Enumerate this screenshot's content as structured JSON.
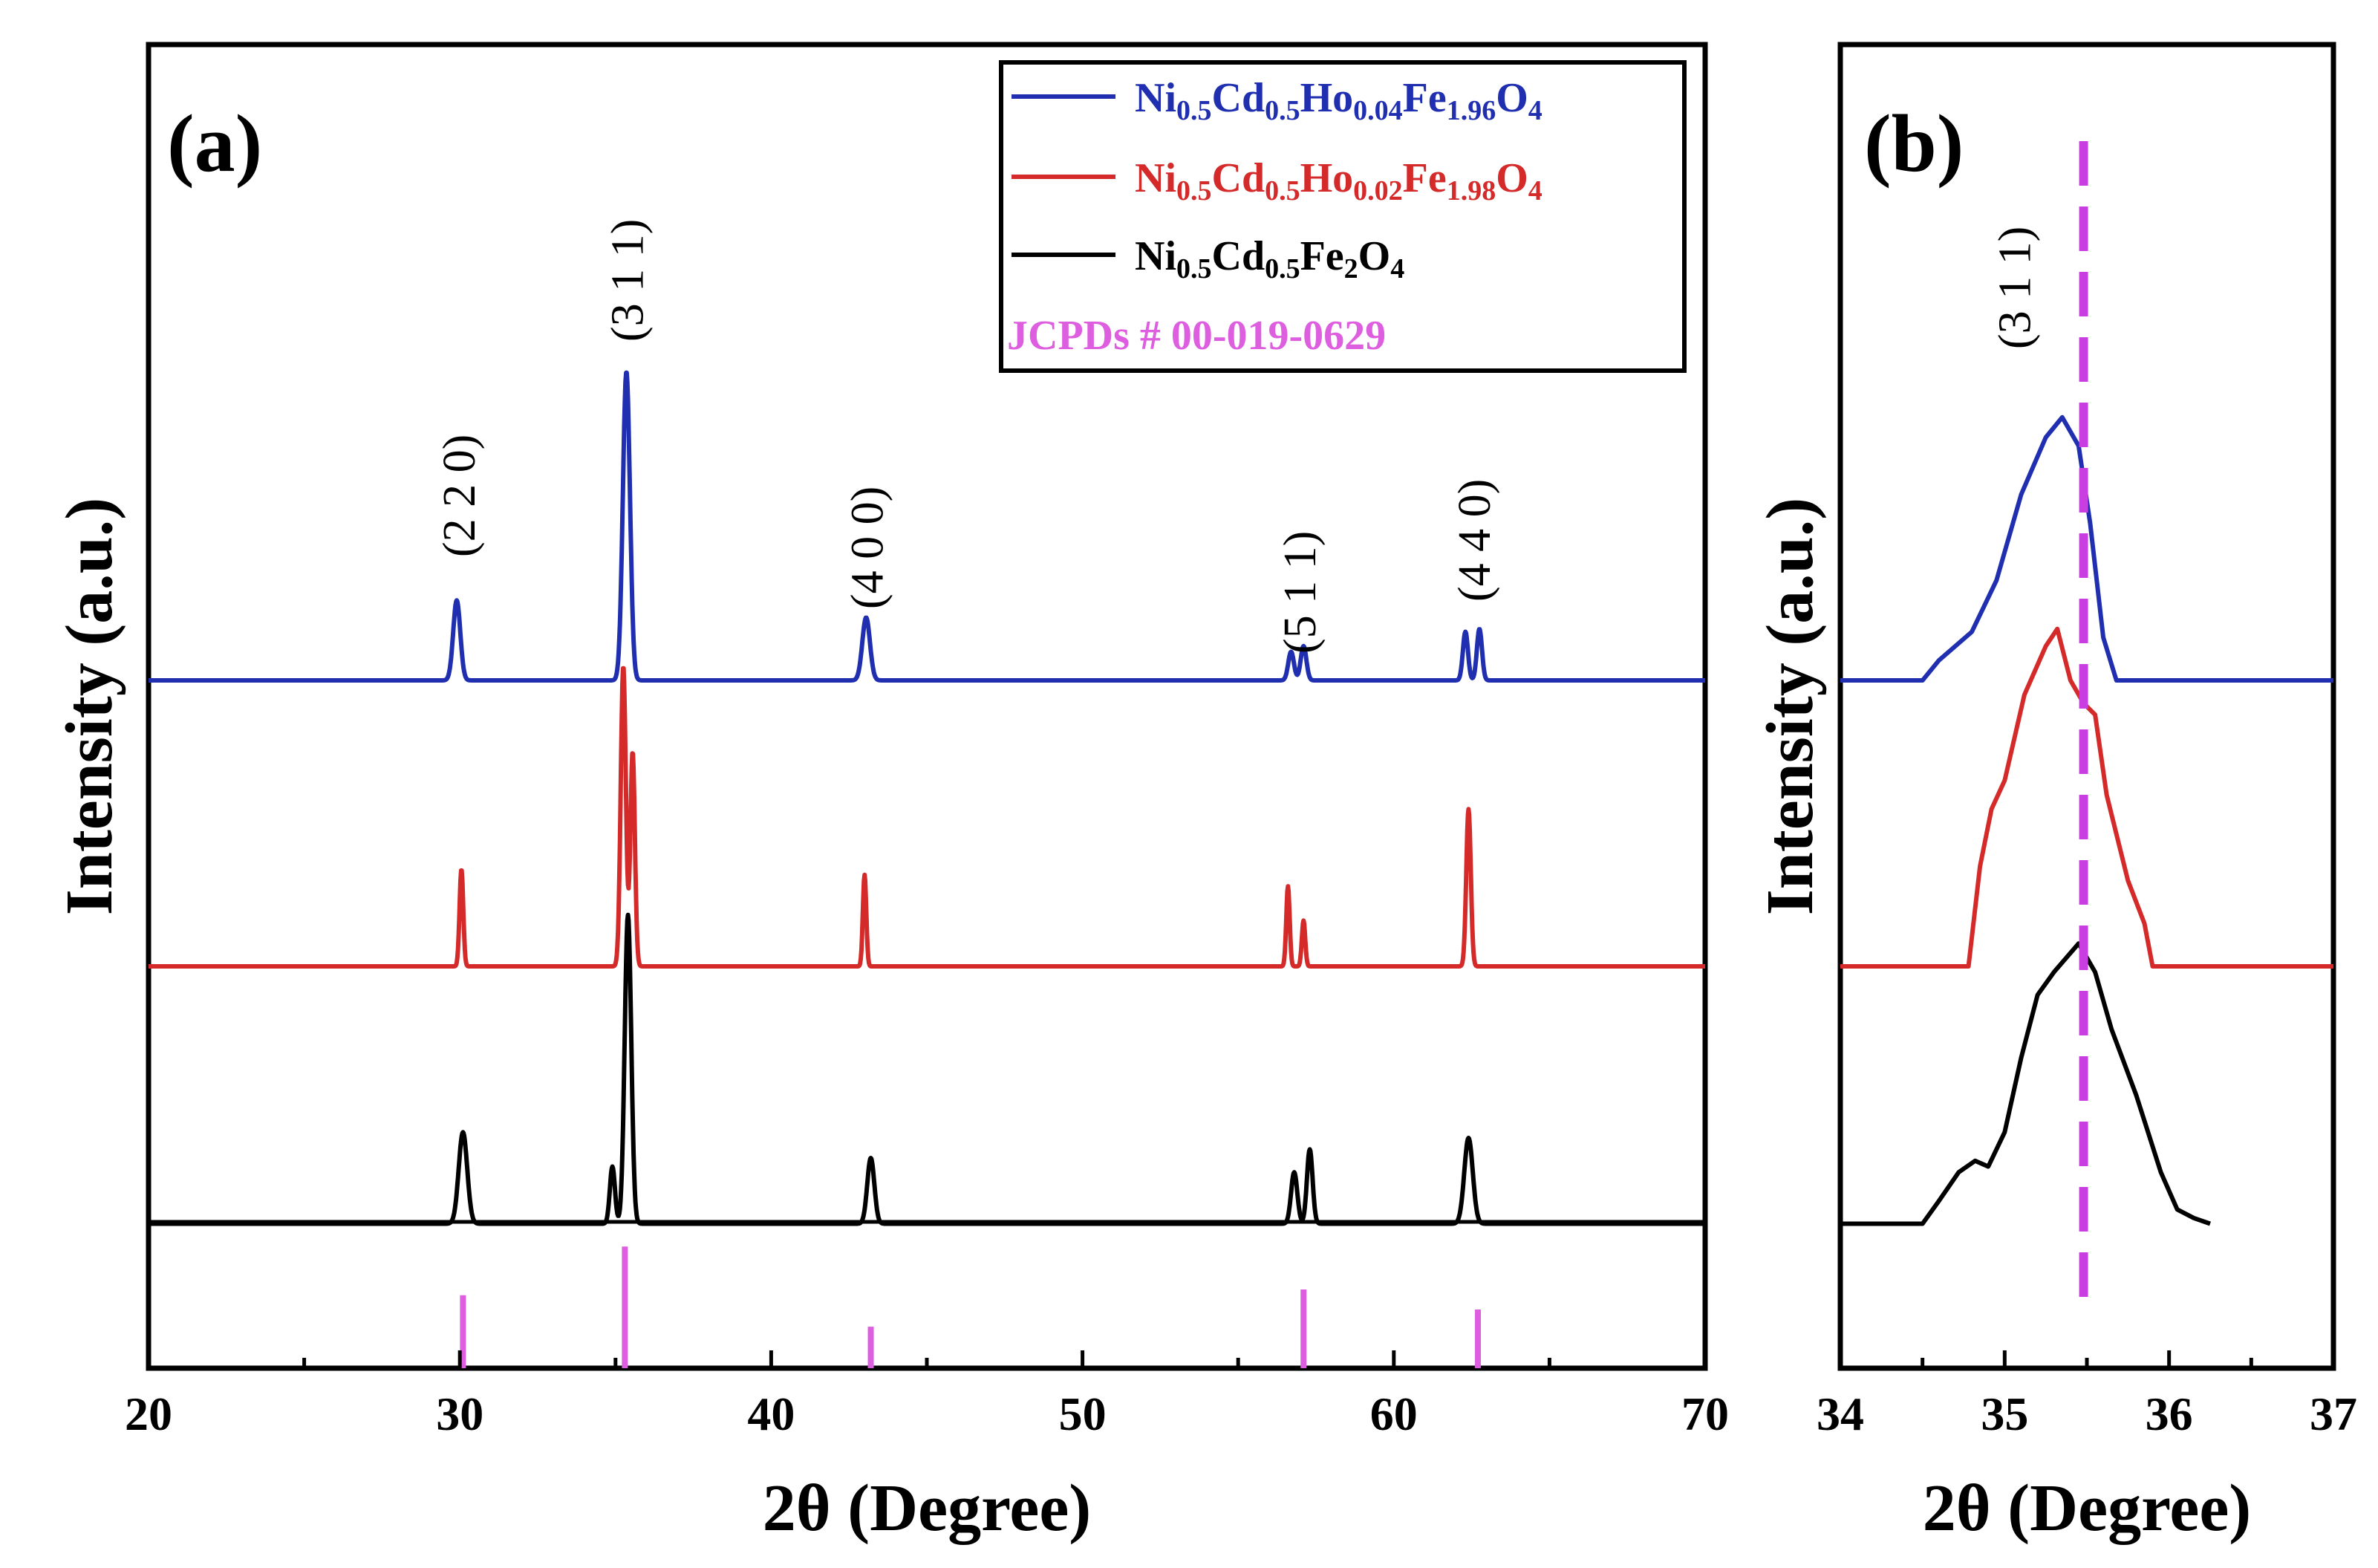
{
  "chart_data": [
    {
      "panel": "(a)",
      "type": "line",
      "xlabel": "2θ (Degree)",
      "ylabel": "Intensity (a.u.)",
      "xlim": [
        20,
        70
      ],
      "xticks": [
        20,
        30,
        40,
        50,
        60,
        70
      ],
      "colors": {
        "blue": "#1f2fb0",
        "red": "#d42a2a",
        "black": "#000000",
        "ref": "#dd5fe0"
      },
      "legend": [
        {
          "key": "blue",
          "parts": [
            [
              "Ni",
              ""
            ],
            [
              "0.5",
              "sub"
            ],
            [
              "Cd",
              ""
            ],
            [
              "0.5",
              "sub"
            ],
            [
              "Ho",
              ""
            ],
            [
              "0.04",
              "sub"
            ],
            [
              "Fe",
              ""
            ],
            [
              "1.96",
              "sub"
            ],
            [
              "O",
              ""
            ],
            [
              "4",
              "sub"
            ]
          ]
        },
        {
          "key": "red",
          "parts": [
            [
              "Ni",
              ""
            ],
            [
              "0.5",
              "sub"
            ],
            [
              "Cd",
              ""
            ],
            [
              "0.5",
              "sub"
            ],
            [
              "Ho",
              ""
            ],
            [
              "0.02",
              "sub"
            ],
            [
              "Fe",
              ""
            ],
            [
              "1.98",
              "sub"
            ],
            [
              "O",
              ""
            ],
            [
              "4",
              "sub"
            ]
          ]
        },
        {
          "key": "black",
          "parts": [
            [
              "Ni",
              ""
            ],
            [
              "0.5",
              "sub"
            ],
            [
              "Cd",
              ""
            ],
            [
              "0.5",
              "sub"
            ],
            [
              "Fe",
              ""
            ],
            [
              "2",
              "sub"
            ],
            [
              "O",
              ""
            ],
            [
              "4",
              "sub"
            ]
          ]
        }
      ],
      "reference_label": "JCPDs # 00-019-0629",
      "series": [
        {
          "key": "blue",
          "baseline": 2.4,
          "peaks": [
            [
              29.9,
              0.28,
              0.25
            ],
            [
              35.35,
              1.08,
              0.25
            ],
            [
              43.05,
              0.22,
              0.27
            ],
            [
              56.7,
              0.1,
              0.2
            ],
            [
              57.1,
              0.12,
              0.2
            ],
            [
              62.3,
              0.17,
              0.18
            ],
            [
              62.75,
              0.18,
              0.18
            ]
          ]
        },
        {
          "key": "red",
          "baseline": 1.4,
          "peaks": [
            [
              30.05,
              0.34,
              0.13
            ],
            [
              35.25,
              1.05,
              0.18
            ],
            [
              35.55,
              0.75,
              0.16
            ],
            [
              43.0,
              0.32,
              0.12
            ],
            [
              56.6,
              0.28,
              0.12
            ],
            [
              57.1,
              0.16,
              0.12
            ],
            [
              62.4,
              0.55,
              0.16
            ]
          ]
        },
        {
          "key": "black",
          "baseline": 0.5,
          "peaks": [
            [
              30.1,
              0.32,
              0.3
            ],
            [
              34.9,
              0.2,
              0.18
            ],
            [
              35.4,
              1.08,
              0.23
            ],
            [
              43.2,
              0.23,
              0.25
            ],
            [
              56.8,
              0.18,
              0.22
            ],
            [
              57.3,
              0.26,
              0.2
            ],
            [
              62.4,
              0.3,
              0.3
            ]
          ]
        }
      ],
      "reference_lines": [
        {
          "x": 30.1,
          "h": 0.25
        },
        {
          "x": 35.3,
          "h": 0.42
        },
        {
          "x": 43.2,
          "h": 0.14
        },
        {
          "x": 57.1,
          "h": 0.27
        },
        {
          "x": 62.7,
          "h": 0.2
        }
      ],
      "hkl_labels": [
        {
          "x": 30.0,
          "text": "(2 2 0)"
        },
        {
          "x": 35.4,
          "text": "(3 1 1)"
        },
        {
          "x": 43.1,
          "text": "(4 0 0)"
        },
        {
          "x": 57.0,
          "text": "(5 1 1)"
        },
        {
          "x": 62.6,
          "text": "(4 4 0)"
        }
      ]
    },
    {
      "panel": "(b)",
      "type": "line",
      "xlabel": "2θ (Degree)",
      "ylabel": "Intensity (a.u.)",
      "xlim": [
        34,
        37
      ],
      "xticks": [
        34,
        35,
        36,
        37
      ],
      "hkl_label": "(3 1 1)",
      "reference_x": 35.48,
      "series": [
        {
          "key": "blue",
          "points": [
            [
              34.0,
              2.4
            ],
            [
              34.5,
              2.4
            ],
            [
              34.6,
              2.47
            ],
            [
              34.8,
              2.57
            ],
            [
              34.95,
              2.75
            ],
            [
              35.1,
              3.05
            ],
            [
              35.25,
              3.25
            ],
            [
              35.35,
              3.32
            ],
            [
              35.45,
              3.22
            ],
            [
              35.52,
              2.95
            ],
            [
              35.6,
              2.55
            ],
            [
              35.68,
              2.4
            ],
            [
              37.0,
              2.4
            ]
          ]
        },
        {
          "key": "red",
          "points": [
            [
              34.0,
              1.4
            ],
            [
              34.78,
              1.4
            ],
            [
              34.85,
              1.75
            ],
            [
              34.92,
              1.95
            ],
            [
              35.0,
              2.05
            ],
            [
              35.12,
              2.35
            ],
            [
              35.25,
              2.52
            ],
            [
              35.32,
              2.58
            ],
            [
              35.4,
              2.4
            ],
            [
              35.48,
              2.32
            ],
            [
              35.55,
              2.28
            ],
            [
              35.62,
              2.0
            ],
            [
              35.75,
              1.7
            ],
            [
              35.85,
              1.55
            ],
            [
              35.9,
              1.4
            ],
            [
              37.0,
              1.4
            ]
          ]
        },
        {
          "key": "black",
          "points": [
            [
              34.0,
              0.5
            ],
            [
              34.5,
              0.5
            ],
            [
              34.6,
              0.58
            ],
            [
              34.72,
              0.68
            ],
            [
              34.82,
              0.72
            ],
            [
              34.9,
              0.7
            ],
            [
              35.0,
              0.82
            ],
            [
              35.1,
              1.08
            ],
            [
              35.2,
              1.3
            ],
            [
              35.3,
              1.38
            ],
            [
              35.45,
              1.48
            ],
            [
              35.55,
              1.38
            ],
            [
              35.65,
              1.18
            ],
            [
              35.8,
              0.95
            ],
            [
              35.95,
              0.68
            ],
            [
              36.05,
              0.55
            ],
            [
              36.15,
              0.52
            ],
            [
              36.25,
              0.5
            ]
          ]
        }
      ]
    }
  ]
}
